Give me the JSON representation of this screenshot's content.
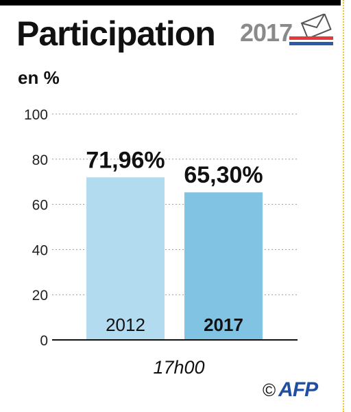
{
  "header": {
    "title": "Participation",
    "logo_year": "2017"
  },
  "unit": "en %",
  "x_label": "17h00",
  "credit": {
    "copyright": "©",
    "agency": "AFP"
  },
  "colors": {
    "bar_2012": "#b3dbf0",
    "bar_2017": "#80c3e3",
    "grid": "#999999",
    "accent": "#f3c623",
    "logo_red": "#e53a3a",
    "logo_blue": "#2b5aa8"
  },
  "chart_data": {
    "type": "bar",
    "categories": [
      "2012",
      "2017"
    ],
    "values": [
      71.96,
      65.3
    ],
    "data_labels": [
      "71,96%",
      "65,30%"
    ],
    "title": "Participation",
    "ylabel": "en %",
    "xlabel": "17h00",
    "ylim": [
      0,
      100
    ],
    "yticks": [
      0,
      20,
      40,
      60,
      80,
      100
    ],
    "grid": true,
    "bold_categories": [
      "2017"
    ]
  }
}
